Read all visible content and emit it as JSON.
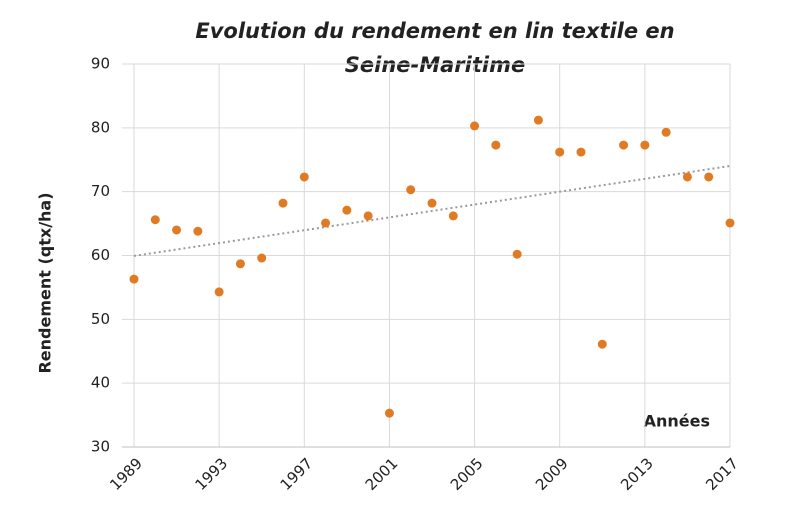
{
  "chart_data": {
    "type": "scatter",
    "title": [
      "Evolution du rendement  en lin textile en",
      "Seine-Maritime"
    ],
    "y_label": "Rendement (qtx/ha)",
    "x_label": "Années",
    "x": [
      1989,
      1990,
      1991,
      1992,
      1993,
      1994,
      1995,
      1996,
      1997,
      1998,
      1999,
      2000,
      2001,
      2002,
      2003,
      2004,
      2005,
      2006,
      2007,
      2008,
      2009,
      2010,
      2011,
      2012,
      2013,
      2014,
      2015,
      2016,
      2017
    ],
    "values": [
      56.3,
      65.6,
      64.0,
      63.8,
      54.3,
      58.7,
      59.6,
      68.2,
      72.3,
      65.1,
      67.1,
      66.2,
      35.3,
      70.3,
      68.2,
      66.2,
      80.3,
      77.3,
      60.2,
      81.2,
      76.2,
      76.2,
      46.1,
      77.3,
      77.3,
      79.3,
      72.3,
      72.3,
      65.1
    ],
    "color": "#e07b24",
    "trendline": true,
    "xlim": [
      1989,
      2017
    ],
    "xticks": [
      1989,
      1993,
      1997,
      2001,
      2005,
      2009,
      2013,
      2017
    ],
    "ylim": [
      30,
      90
    ],
    "yticks": [
      30,
      40,
      50,
      60,
      70,
      80,
      90
    ],
    "grid": true
  }
}
